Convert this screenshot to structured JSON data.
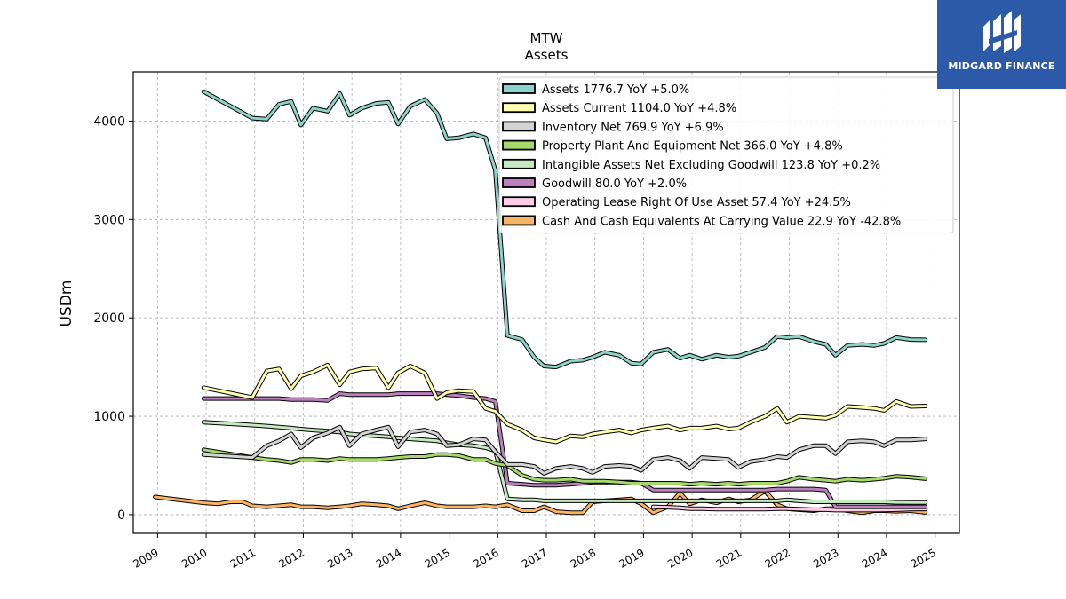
{
  "chart_data": {
    "type": "line",
    "title": "MTW",
    "subtitle": "Assets",
    "ylabel": "USDm",
    "xlabel": "",
    "xlim": [
      2008.5,
      2025.5
    ],
    "ylim": [
      -190,
      4500
    ],
    "yticks": [
      0,
      1000,
      2000,
      3000,
      4000
    ],
    "xticks": [
      2009,
      2010,
      2011,
      2012,
      2013,
      2014,
      2015,
      2016,
      2017,
      2018,
      2019,
      2020,
      2021,
      2022,
      2023,
      2024,
      2025
    ],
    "grid": true,
    "legend_position": "top-right",
    "series": [
      {
        "name": "Assets",
        "legend": "Assets  1776.7 YoY +5.0%",
        "color": "#8dd3c7",
        "x": [
          2009.95,
          2010.95,
          2011.25,
          2011.5,
          2011.75,
          2011.95,
          2012.2,
          2012.5,
          2012.75,
          2012.95,
          2013.2,
          2013.5,
          2013.75,
          2013.95,
          2014.2,
          2014.5,
          2014.75,
          2014.95,
          2015.2,
          2015.5,
          2015.75,
          2015.95,
          2016.2,
          2016.5,
          2016.75,
          2016.95,
          2017.2,
          2017.5,
          2017.75,
          2017.95,
          2018.2,
          2018.5,
          2018.75,
          2018.95,
          2019.2,
          2019.5,
          2019.75,
          2019.95,
          2020.2,
          2020.5,
          2020.75,
          2020.95,
          2021.2,
          2021.5,
          2021.75,
          2021.95,
          2022.2,
          2022.5,
          2022.75,
          2022.95,
          2023.2,
          2023.5,
          2023.75,
          2023.95,
          2024.2,
          2024.5,
          2024.8
        ],
        "y": [
          4300,
          4030,
          4020,
          4170,
          4200,
          3960,
          4130,
          4100,
          4280,
          4060,
          4130,
          4180,
          4190,
          3970,
          4150,
          4220,
          4080,
          3820,
          3830,
          3870,
          3830,
          3500,
          1820,
          1780,
          1600,
          1510,
          1500,
          1560,
          1570,
          1600,
          1650,
          1620,
          1540,
          1530,
          1650,
          1680,
          1590,
          1620,
          1580,
          1620,
          1600,
          1610,
          1650,
          1700,
          1810,
          1800,
          1810,
          1760,
          1730,
          1620,
          1720,
          1730,
          1720,
          1740,
          1800,
          1780,
          1777
        ]
      },
      {
        "name": "Assets Current",
        "legend": "Assets Current  1104.0 YoY +4.8%",
        "color": "#ffffb3",
        "x": [
          2009.95,
          2010.95,
          2011.25,
          2011.5,
          2011.75,
          2011.95,
          2012.2,
          2012.5,
          2012.75,
          2012.95,
          2013.2,
          2013.5,
          2013.75,
          2013.95,
          2014.2,
          2014.5,
          2014.75,
          2014.95,
          2015.2,
          2015.5,
          2015.75,
          2015.95,
          2016.2,
          2016.5,
          2016.75,
          2016.95,
          2017.2,
          2017.5,
          2017.75,
          2017.95,
          2018.2,
          2018.5,
          2018.75,
          2018.95,
          2019.2,
          2019.5,
          2019.75,
          2019.95,
          2020.2,
          2020.5,
          2020.75,
          2020.95,
          2021.2,
          2021.5,
          2021.75,
          2021.95,
          2022.2,
          2022.5,
          2022.75,
          2022.95,
          2023.2,
          2023.5,
          2023.75,
          2023.95,
          2024.2,
          2024.5,
          2024.8
        ],
        "y": [
          1290,
          1190,
          1460,
          1480,
          1280,
          1410,
          1450,
          1520,
          1320,
          1450,
          1480,
          1490,
          1290,
          1440,
          1510,
          1440,
          1180,
          1240,
          1260,
          1250,
          1080,
          1050,
          920,
          860,
          780,
          760,
          740,
          800,
          790,
          820,
          840,
          860,
          830,
          860,
          880,
          900,
          860,
          880,
          880,
          900,
          870,
          880,
          940,
          1000,
          1080,
          940,
          1000,
          990,
          980,
          1010,
          1100,
          1090,
          1080,
          1060,
          1150,
          1100,
          1104
        ]
      },
      {
        "name": "Inventory Net",
        "legend": "Inventory Net  769.9 YoY +6.9%",
        "color": "#d3d3d3",
        "x": [
          2009.95,
          2010.95,
          2011.25,
          2011.5,
          2011.75,
          2011.95,
          2012.2,
          2012.5,
          2012.75,
          2012.95,
          2013.2,
          2013.5,
          2013.75,
          2013.95,
          2014.2,
          2014.5,
          2014.75,
          2014.95,
          2015.2,
          2015.5,
          2015.75,
          2015.95,
          2016.2,
          2016.5,
          2016.75,
          2016.95,
          2017.2,
          2017.5,
          2017.75,
          2017.95,
          2018.2,
          2018.5,
          2018.75,
          2018.95,
          2019.2,
          2019.5,
          2019.75,
          2019.95,
          2020.2,
          2020.5,
          2020.75,
          2020.95,
          2021.2,
          2021.5,
          2021.75,
          2021.95,
          2022.2,
          2022.5,
          2022.75,
          2022.95,
          2023.2,
          2023.5,
          2023.75,
          2023.95,
          2024.2,
          2024.5,
          2024.8
        ],
        "y": [
          610,
          580,
          700,
          750,
          820,
          680,
          780,
          830,
          890,
          700,
          820,
          860,
          890,
          690,
          840,
          860,
          820,
          700,
          710,
          770,
          760,
          640,
          510,
          510,
          490,
          420,
          470,
          490,
          470,
          430,
          490,
          500,
          490,
          450,
          560,
          580,
          550,
          470,
          580,
          570,
          560,
          480,
          540,
          560,
          590,
          580,
          660,
          700,
          700,
          620,
          740,
          750,
          740,
          700,
          760,
          760,
          770
        ]
      },
      {
        "name": "Property Plant And Equipment Net",
        "legend": "Property Plant And Equipment Net  366.0 YoY +4.8%",
        "color": "#a6d96a",
        "x": [
          2009.95,
          2010.95,
          2011.25,
          2011.5,
          2011.75,
          2011.95,
          2012.2,
          2012.5,
          2012.75,
          2012.95,
          2013.2,
          2013.5,
          2013.75,
          2013.95,
          2014.2,
          2014.5,
          2014.75,
          2014.95,
          2015.2,
          2015.5,
          2015.75,
          2015.95,
          2016.2,
          2016.5,
          2016.75,
          2016.95,
          2017.2,
          2017.5,
          2017.75,
          2017.95,
          2018.2,
          2018.5,
          2018.75,
          2018.95,
          2019.2,
          2019.5,
          2019.75,
          2019.95,
          2020.2,
          2020.5,
          2020.75,
          2020.95,
          2021.2,
          2021.5,
          2021.75,
          2021.95,
          2022.2,
          2022.5,
          2022.75,
          2022.95,
          2023.2,
          2023.5,
          2023.75,
          2023.95,
          2024.2,
          2024.5,
          2024.8
        ],
        "y": [
          660,
          580,
          560,
          550,
          530,
          560,
          560,
          550,
          570,
          560,
          560,
          560,
          570,
          580,
          590,
          590,
          610,
          610,
          600,
          560,
          560,
          520,
          500,
          400,
          360,
          350,
          350,
          360,
          340,
          340,
          340,
          330,
          320,
          320,
          320,
          320,
          320,
          310,
          320,
          310,
          320,
          310,
          320,
          320,
          320,
          340,
          380,
          360,
          350,
          340,
          360,
          350,
          360,
          370,
          390,
          380,
          366
        ]
      },
      {
        "name": "Intangible Assets Net Excluding Goodwill",
        "legend": "Intangible Assets Net Excluding Goodwill  123.8 YoY +0.2%",
        "color": "#c7e9c0",
        "x": [
          2009.95,
          2010.95,
          2011.25,
          2011.5,
          2011.75,
          2011.95,
          2012.2,
          2012.5,
          2012.75,
          2012.95,
          2013.2,
          2013.5,
          2013.75,
          2013.95,
          2014.2,
          2014.5,
          2014.75,
          2014.95,
          2015.2,
          2015.5,
          2015.75,
          2015.95,
          2016.2,
          2016.5,
          2016.75,
          2016.95,
          2017.2,
          2017.5,
          2017.75,
          2017.95,
          2018.2,
          2018.5,
          2018.75,
          2018.95,
          2019.2,
          2019.5,
          2019.75,
          2019.95,
          2020.2,
          2020.5,
          2020.75,
          2020.95,
          2021.2,
          2021.5,
          2021.75,
          2021.95,
          2022.2,
          2022.5,
          2022.75,
          2022.95,
          2023.2,
          2023.5,
          2023.75,
          2023.95,
          2024.2,
          2024.5,
          2024.8
        ],
        "y": [
          940,
          910,
          900,
          890,
          880,
          870,
          860,
          850,
          840,
          820,
          810,
          800,
          790,
          780,
          770,
          760,
          750,
          730,
          710,
          700,
          680,
          650,
          160,
          150,
          150,
          140,
          140,
          140,
          140,
          140,
          140,
          140,
          140,
          140,
          140,
          140,
          140,
          140,
          140,
          140,
          140,
          140,
          140,
          140,
          140,
          150,
          140,
          130,
          130,
          130,
          130,
          130,
          130,
          130,
          125,
          124,
          124
        ]
      },
      {
        "name": "Goodwill",
        "legend": "Goodwill  80.0 YoY +2.0%",
        "color": "#bc80bd",
        "x": [
          2009.95,
          2010.95,
          2011.25,
          2011.5,
          2011.75,
          2011.95,
          2012.2,
          2012.5,
          2012.75,
          2012.95,
          2013.2,
          2013.5,
          2013.75,
          2013.95,
          2014.2,
          2014.5,
          2014.75,
          2014.95,
          2015.2,
          2015.5,
          2015.75,
          2015.95,
          2016.2,
          2016.5,
          2016.75,
          2016.95,
          2017.2,
          2017.5,
          2017.75,
          2017.95,
          2018.2,
          2018.5,
          2018.75,
          2018.95,
          2019.2,
          2019.5,
          2019.75,
          2019.95,
          2020.2,
          2020.5,
          2020.75,
          2020.95,
          2021.2,
          2021.5,
          2021.75,
          2021.95,
          2022.2,
          2022.5,
          2022.75,
          2022.95,
          2023.2,
          2023.5,
          2023.75,
          2023.95,
          2024.2,
          2024.5,
          2024.8
        ],
        "y": [
          1180,
          1180,
          1180,
          1180,
          1170,
          1170,
          1170,
          1160,
          1230,
          1220,
          1220,
          1220,
          1220,
          1230,
          1230,
          1230,
          1230,
          1220,
          1210,
          1190,
          1180,
          1150,
          320,
          310,
          300,
          300,
          300,
          310,
          320,
          330,
          330,
          330,
          330,
          320,
          250,
          250,
          250,
          250,
          250,
          250,
          250,
          250,
          250,
          250,
          260,
          260,
          260,
          260,
          250,
          80,
          80,
          80,
          80,
          80,
          80,
          80,
          80
        ]
      },
      {
        "name": "Operating Lease Right Of Use Asset",
        "legend": "Operating Lease Right Of Use Asset  57.4 YoY +24.5%",
        "color": "#fccde5",
        "x": [
          2019.2,
          2019.5,
          2019.75,
          2019.95,
          2020.2,
          2020.5,
          2020.75,
          2020.95,
          2021.2,
          2021.5,
          2021.75,
          2021.95,
          2022.2,
          2022.5,
          2022.75,
          2022.95,
          2023.2,
          2023.5,
          2023.75,
          2023.95,
          2024.2,
          2024.5,
          2024.8
        ],
        "y": [
          80,
          75,
          70,
          60,
          60,
          55,
          55,
          55,
          55,
          55,
          60,
          60,
          55,
          50,
          50,
          45,
          45,
          45,
          45,
          46,
          50,
          55,
          57
        ]
      },
      {
        "name": "Cash And Cash Equivalents At Carrying Value",
        "legend": "Cash And Cash Equivalents At Carrying Value  22.9 YoY -42.8%",
        "color": "#fdb462",
        "x": [
          2008.95,
          2009.95,
          2010.25,
          2010.5,
          2010.75,
          2010.95,
          2011.25,
          2011.5,
          2011.75,
          2011.95,
          2012.2,
          2012.5,
          2012.75,
          2012.95,
          2013.2,
          2013.5,
          2013.75,
          2013.95,
          2014.2,
          2014.5,
          2014.75,
          2014.95,
          2015.2,
          2015.5,
          2015.75,
          2015.95,
          2016.2,
          2016.5,
          2016.75,
          2016.95,
          2017.2,
          2017.5,
          2017.75,
          2017.95,
          2018.2,
          2018.5,
          2018.75,
          2018.95,
          2019.2,
          2019.5,
          2019.75,
          2019.95,
          2020.2,
          2020.5,
          2020.75,
          2020.95,
          2021.2,
          2021.5,
          2021.75,
          2021.95,
          2022.2,
          2022.5,
          2022.75,
          2022.95,
          2023.2,
          2023.5,
          2023.75,
          2023.95,
          2024.2,
          2024.5,
          2024.8
        ],
        "y": [
          180,
          120,
          110,
          130,
          130,
          90,
          80,
          90,
          100,
          80,
          80,
          70,
          80,
          90,
          110,
          100,
          90,
          60,
          90,
          120,
          90,
          80,
          80,
          80,
          90,
          80,
          100,
          40,
          40,
          80,
          30,
          20,
          20,
          130,
          140,
          150,
          160,
          110,
          20,
          80,
          220,
          110,
          150,
          120,
          160,
          130,
          150,
          240,
          100,
          60,
          50,
          40,
          60,
          60,
          40,
          20,
          40,
          40,
          35,
          40,
          23
        ]
      }
    ]
  },
  "branding": {
    "logo_text": "MIDGARD FINANCE",
    "logo_color": "#2d5aa8"
  }
}
